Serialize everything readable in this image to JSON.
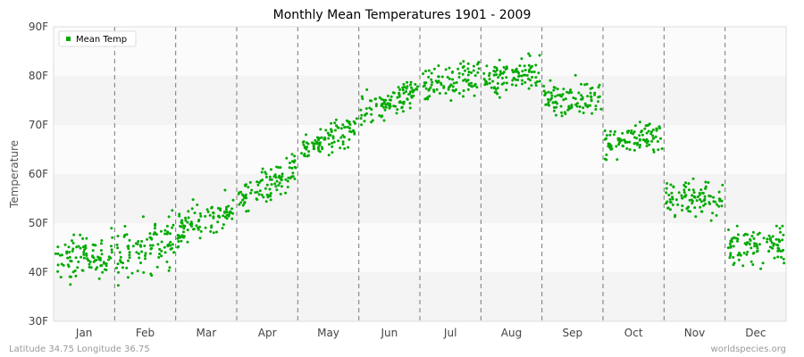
{
  "chart_data": {
    "type": "scatter",
    "title": "Monthly Mean Temperatures 1901 - 2009",
    "xlabel": "",
    "ylabel": "Temperature",
    "categories": [
      "Jan",
      "Feb",
      "Mar",
      "Apr",
      "May",
      "Jun",
      "Jul",
      "Aug",
      "Sep",
      "Oct",
      "Nov",
      "Dec"
    ],
    "y_ticks": [
      "30F",
      "40F",
      "50F",
      "60F",
      "70F",
      "80F",
      "90F"
    ],
    "ylim": [
      30,
      90
    ],
    "grid": "horizontal bands with dashed vertical month separators",
    "legend": {
      "position": "top-left",
      "entries": [
        "Mean Temp"
      ]
    },
    "series": [
      {
        "name": "Mean Temp",
        "color": "#00aa00",
        "month_ranges": [
          {
            "month": "Jan",
            "start": 42,
            "end": 44,
            "min": 35,
            "max": 50
          },
          {
            "month": "Feb",
            "start": 43,
            "end": 47,
            "min": 36,
            "max": 55
          },
          {
            "month": "Mar",
            "start": 48,
            "end": 53,
            "min": 45,
            "max": 58
          },
          {
            "month": "Apr",
            "start": 55,
            "end": 61,
            "min": 52,
            "max": 65
          },
          {
            "month": "May",
            "start": 65,
            "end": 69,
            "min": 63,
            "max": 73
          },
          {
            "month": "Jun",
            "start": 72,
            "end": 77,
            "min": 69,
            "max": 80
          },
          {
            "month": "Jul",
            "start": 78,
            "end": 80,
            "min": 74,
            "max": 86
          },
          {
            "month": "Aug",
            "start": 79,
            "end": 81,
            "min": 75,
            "max": 86
          },
          {
            "month": "Sep",
            "start": 75,
            "end": 76,
            "min": 69,
            "max": 81
          },
          {
            "month": "Oct",
            "start": 66,
            "end": 68,
            "min": 61,
            "max": 72
          },
          {
            "month": "Nov",
            "start": 55,
            "end": 55,
            "min": 49,
            "max": 61
          },
          {
            "month": "Dec",
            "start": 45,
            "end": 46,
            "min": 38,
            "max": 51
          }
        ]
      }
    ]
  },
  "footer": {
    "left": "Latitude 34.75 Longitude 36.75",
    "right": "worldspecies.org"
  }
}
